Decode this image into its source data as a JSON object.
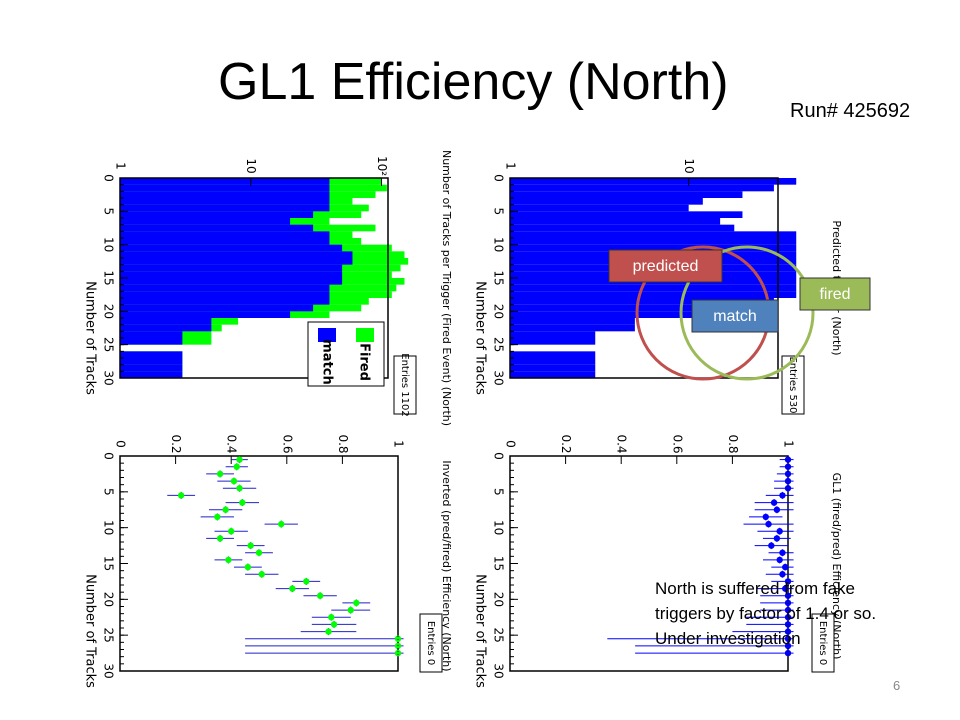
{
  "slide": {
    "title": "GL1 Efficiency (North)",
    "run": "Run# 425692",
    "slide_number": "6",
    "note_lines": [
      "North is suffered from fake",
      "triggers by factor of 1.4 or so.",
      "Under investigation"
    ]
  },
  "venn": {
    "predicted_label": "predicted",
    "match_label": "match",
    "fired_label": "fired",
    "colors": {
      "predicted": "#c0504d",
      "match": "#4f81bd",
      "fired": "#9bbb59"
    }
  },
  "colors": {
    "blue": "#0000ff",
    "green": "#00ff00",
    "errbar_blue": "#0000ff",
    "errbar_green": "#2222cc"
  },
  "chart_data": [
    {
      "type": "bar",
      "orientation": "rotated",
      "title": "Number of Tracks per Trigger (Fired Event) (North)",
      "xlabel": "Number of Tracks",
      "x_ticks": [
        "0",
        "5",
        "10",
        "15",
        "20",
        "25",
        "30"
      ],
      "y_ticks": [
        "1",
        "10",
        "10^2"
      ],
      "log_y": true,
      "xlim": [
        0,
        30
      ],
      "legend": [
        "Fired",
        "match"
      ],
      "stats": {
        "label": "Entries",
        "value": "1102"
      },
      "categories": [
        0,
        1,
        2,
        3,
        4,
        5,
        6,
        7,
        8,
        9,
        10,
        11,
        12,
        13,
        14,
        15,
        16,
        17,
        18,
        19,
        20,
        21,
        22,
        23,
        24,
        25,
        26,
        27,
        28,
        29
      ],
      "series": [
        {
          "name": "Fired",
          "values": [
            100,
            110,
            90,
            60,
            80,
            70,
            40,
            90,
            60,
            70,
            120,
            150,
            160,
            140,
            120,
            150,
            130,
            120,
            80,
            70,
            40,
            8,
            6,
            5,
            5,
            1,
            3,
            3,
            3,
            3
          ]
        },
        {
          "name": "match",
          "values": [
            40,
            40,
            40,
            40,
            40,
            30,
            20,
            30,
            40,
            40,
            50,
            60,
            60,
            50,
            50,
            50,
            40,
            40,
            40,
            30,
            20,
            5,
            5,
            3,
            3,
            1,
            3,
            3,
            3,
            3
          ]
        }
      ]
    },
    {
      "type": "bar",
      "orientation": "rotated",
      "title": "Predicted trigger (North)",
      "xlabel": "Number of Tracks",
      "x_ticks": [
        "0",
        "5",
        "10",
        "15",
        "20",
        "25",
        "30"
      ],
      "y_ticks": [
        "1",
        "10"
      ],
      "log_y": true,
      "xlim": [
        0,
        30
      ],
      "stats": {
        "label": "Entries",
        "value": "530"
      },
      "categories": [
        0,
        1,
        2,
        3,
        4,
        5,
        6,
        7,
        8,
        9,
        10,
        11,
        12,
        13,
        14,
        15,
        16,
        17,
        18,
        19,
        20,
        21,
        22,
        23,
        24,
        25,
        26,
        27,
        28,
        29
      ],
      "series": [
        {
          "name": "predicted",
          "values": [
            40,
            30,
            20,
            12,
            10,
            20,
            15,
            18,
            40,
            40,
            40,
            40,
            40,
            40,
            40,
            40,
            40,
            40,
            30,
            30,
            20,
            5,
            5,
            3,
            3,
            1,
            3,
            3,
            3,
            3
          ]
        }
      ]
    },
    {
      "type": "scatter",
      "orientation": "rotated",
      "title": "Inverted (pred/fired) Efficiency (North)",
      "xlabel": "Number of Tracks",
      "x_ticks": [
        "0",
        "5",
        "10",
        "15",
        "20",
        "25",
        "30"
      ],
      "y_ticks": [
        "0",
        "0.2",
        "0.4",
        "0.6",
        "0.8",
        "1"
      ],
      "xlim": [
        0,
        30
      ],
      "ylim": [
        0,
        1
      ],
      "stats": {
        "label": "Entries",
        "value": "0"
      },
      "x": [
        0.5,
        1.5,
        2.5,
        3.5,
        4.5,
        5.5,
        6.5,
        7.5,
        8.5,
        9.5,
        10.5,
        11.5,
        12.5,
        13.5,
        14.5,
        15.5,
        16.5,
        17.5,
        18.5,
        19.5,
        20.5,
        21.5,
        22.5,
        23.5,
        24.5,
        25.5,
        26.5,
        27.5
      ],
      "y": [
        0.43,
        0.42,
        0.36,
        0.41,
        0.43,
        0.22,
        0.44,
        0.38,
        0.35,
        0.58,
        0.4,
        0.36,
        0.47,
        0.5,
        0.39,
        0.46,
        0.51,
        0.67,
        0.62,
        0.72,
        0.85,
        0.83,
        0.76,
        0.77,
        0.75,
        1.0,
        1.0,
        1.0
      ],
      "err": [
        0.03,
        0.04,
        0.05,
        0.06,
        0.06,
        0.05,
        0.06,
        0.06,
        0.06,
        0.06,
        0.06,
        0.05,
        0.05,
        0.05,
        0.05,
        0.05,
        0.06,
        0.05,
        0.06,
        0.06,
        0.05,
        0.07,
        0.07,
        0.08,
        0.1,
        0.55,
        0.55,
        0.55
      ]
    },
    {
      "type": "scatter",
      "orientation": "rotated",
      "title": "GL1 (fired/pred) Efficiency (North)",
      "xlabel": "Number of Tracks",
      "x_ticks": [
        "0",
        "5",
        "10",
        "15",
        "20",
        "25",
        "30"
      ],
      "y_ticks": [
        "0",
        "0.2",
        "0.4",
        "0.6",
        "0.8",
        "1"
      ],
      "xlim": [
        0,
        30
      ],
      "ylim": [
        0,
        1
      ],
      "stats": {
        "label": "Entries",
        "value": "0"
      },
      "x": [
        0.5,
        1.5,
        2.5,
        3.5,
        4.5,
        5.5,
        6.5,
        7.5,
        8.5,
        9.5,
        10.5,
        11.5,
        12.5,
        13.5,
        14.5,
        15.5,
        16.5,
        17.5,
        18.5,
        19.5,
        20.5,
        21.5,
        22.5,
        23.5,
        24.5,
        25.5,
        26.5,
        27.5
      ],
      "y": [
        1.0,
        1.0,
        1.0,
        1.0,
        1.0,
        0.98,
        0.95,
        0.96,
        0.92,
        0.93,
        0.97,
        0.96,
        0.94,
        0.98,
        0.97,
        0.99,
        0.98,
        1.0,
        0.99,
        1.0,
        1.0,
        1.0,
        1.0,
        1.0,
        1.0,
        1.0,
        1.0,
        1.0
      ],
      "err": [
        0.03,
        0.03,
        0.04,
        0.05,
        0.05,
        0.06,
        0.07,
        0.08,
        0.06,
        0.09,
        0.08,
        0.05,
        0.06,
        0.05,
        0.06,
        0.05,
        0.06,
        0.06,
        0.1,
        0.1,
        0.1,
        0.1,
        0.15,
        0.15,
        0.2,
        0.65,
        0.55,
        0.55
      ]
    }
  ]
}
